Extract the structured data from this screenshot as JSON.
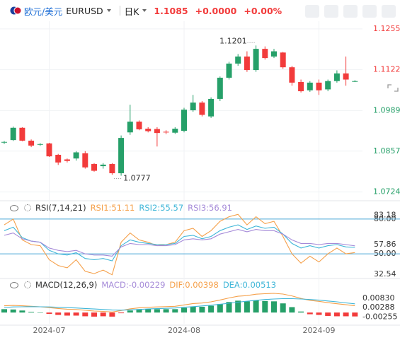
{
  "header": {
    "pair_name": "欧元/美元",
    "symbol": "EURUSD",
    "period": "日K",
    "price": "1.1085",
    "change": "+0.0000",
    "change_pct": "+0.00%"
  },
  "chart_data": [
    {
      "type": "candlestick",
      "categories": [
        null,
        null,
        null,
        null,
        null,
        "2024-07",
        null,
        null,
        null,
        null,
        null,
        null,
        null,
        null,
        null,
        null,
        null,
        null,
        null,
        null,
        "2024-08",
        null,
        null,
        null,
        null,
        null,
        null,
        null,
        null,
        null,
        null,
        null,
        null,
        null,
        null,
        "2024-09",
        null,
        null,
        null,
        null
      ],
      "open": [
        1.0885,
        1.0893,
        1.0933,
        1.0891,
        1.0878,
        1.0882,
        1.0845,
        1.083,
        1.0833,
        1.085,
        1.0815,
        1.0808,
        1.0815,
        1.0785,
        1.0918,
        1.0953,
        1.093,
        1.0929,
        1.092,
        1.0917,
        1.0923,
        1.099,
        1.1015,
        1.097,
        1.1027,
        1.1096,
        1.1142,
        1.1165,
        1.1121,
        1.119,
        1.1165,
        1.1178,
        1.113,
        1.1082,
        1.1055,
        1.108,
        1.1058,
        1.1085,
        1.111,
        1.1085
      ],
      "high": [
        1.089,
        1.0937,
        1.0935,
        1.0895,
        1.0883,
        1.0884,
        1.0848,
        1.0833,
        1.0857,
        1.0857,
        1.0818,
        1.0818,
        1.0818,
        1.0908,
        1.1008,
        1.0957,
        1.0935,
        1.0935,
        1.0925,
        1.0935,
        1.0998,
        1.104,
        1.102,
        1.1032,
        1.11,
        1.1148,
        1.1173,
        1.1182,
        1.1201,
        1.1198,
        1.119,
        1.118,
        1.1135,
        1.109,
        1.1085,
        1.109,
        1.109,
        1.112,
        1.1165,
        1.1088
      ],
      "low": [
        1.088,
        1.089,
        1.0889,
        1.087,
        1.0874,
        1.0838,
        1.0812,
        1.082,
        1.0826,
        1.08,
        1.079,
        1.08,
        1.078,
        1.0777,
        1.091,
        1.0925,
        1.0918,
        1.0872,
        1.0912,
        1.0913,
        1.0918,
        1.0985,
        1.097,
        1.0965,
        1.102,
        1.109,
        1.1135,
        1.1115,
        1.1115,
        1.1155,
        1.116,
        1.1125,
        1.107,
        1.1048,
        1.105,
        1.104,
        1.1052,
        1.108,
        1.107,
        1.1082
      ],
      "close": [
        1.0887,
        1.0933,
        1.0891,
        1.0875,
        1.088,
        1.084,
        1.082,
        1.0825,
        1.0853,
        1.0804,
        1.0793,
        1.0813,
        1.0785,
        1.09,
        1.0953,
        1.0928,
        1.0922,
        1.0916,
        1.0918,
        1.093,
        1.0992,
        1.1015,
        1.0975,
        1.1027,
        1.1096,
        1.1142,
        1.1165,
        1.1121,
        1.119,
        1.116,
        1.1182,
        1.113,
        1.108,
        1.1052,
        1.108,
        1.1055,
        1.1085,
        1.111,
        1.109,
        1.1085
      ],
      "colors": {
        "up": "#26a069",
        "down": "#f23b3b"
      },
      "ylim": [
        1.07,
        1.128
      ],
      "yticks": [
        1.1255,
        1.1122,
        1.0989,
        1.0857,
        1.0724
      ],
      "grid": true
    },
    {
      "type": "line",
      "title": "RSI(7,14,21)",
      "series": [
        {
          "name": "RSI1:51.11",
          "color": "#f5a04a",
          "values": [
            75,
            80,
            62,
            58,
            57,
            45,
            40,
            38,
            45,
            35,
            33,
            36,
            32,
            60,
            68,
            62,
            60,
            57,
            58,
            60,
            70,
            72,
            65,
            70,
            78,
            82,
            84,
            75,
            82,
            76,
            78,
            65,
            50,
            42,
            48,
            43,
            50,
            55,
            50,
            51.11
          ]
        },
        {
          "name": "RSI2:55.57",
          "color": "#3fb6d8",
          "values": [
            70,
            73,
            64,
            61,
            60,
            53,
            50,
            49,
            51,
            46,
            45,
            46,
            44,
            57,
            62,
            60,
            59,
            58,
            58,
            59,
            65,
            66,
            63,
            65,
            70,
            73,
            75,
            71,
            74,
            72,
            73,
            67,
            59,
            55,
            57,
            55,
            57,
            58,
            56,
            55.57
          ]
        },
        {
          "name": "RSI3:56.91",
          "color": "#a58ad8",
          "values": [
            66,
            68,
            63,
            61,
            60,
            55,
            53,
            52,
            53,
            50,
            49,
            49,
            48,
            56,
            59,
            58,
            58,
            57,
            57,
            58,
            62,
            63,
            62,
            63,
            67,
            69,
            71,
            69,
            71,
            70,
            70,
            67,
            62,
            59,
            59,
            58,
            59,
            59,
            58,
            56.91
          ]
        }
      ],
      "ylim": [
        30,
        86
      ],
      "yticks": [
        {
          "value": 80,
          "label": "80.00"
        },
        83.18,
        57.86,
        {
          "value": 50,
          "label": "50.00"
        },
        32.54
      ],
      "hlines": [
        80,
        50
      ],
      "hline_color": "#4aa8d8",
      "grid": true
    },
    {
      "type": "macd",
      "title": "MACD(12,26,9)",
      "series": [
        {
          "name": "MACD:-0.00229",
          "color": "#a58ad8",
          "kind": "bar",
          "values": [
            0.002,
            0.0018,
            0.0012,
            0.0004,
            0,
            -0.0008,
            -0.0014,
            -0.0018,
            -0.0018,
            -0.0022,
            -0.0024,
            -0.0022,
            -0.0024,
            -0.0004,
            0.0012,
            0.002,
            0.002,
            0.002,
            0.002,
            0.002,
            0.0028,
            0.0036,
            0.0034,
            0.004,
            0.005,
            0.0062,
            0.007,
            0.0066,
            0.0072,
            0.0068,
            0.0066,
            0.0054,
            0.0032,
            0.0006,
            -0.001,
            -0.0014,
            -0.002,
            -0.0022,
            -0.0022,
            -0.00229
          ]
        },
        {
          "name": "DIF:0.00398",
          "color": "#f5a04a",
          "kind": "line",
          "values": [
            0.004,
            0.0042,
            0.004,
            0.0037,
            0.0034,
            0.0029,
            0.0024,
            0.002,
            0.0018,
            0.0013,
            0.0009,
            0.0007,
            0.0003,
            0.0012,
            0.0022,
            0.0028,
            0.0031,
            0.0033,
            0.0035,
            0.0037,
            0.0045,
            0.0053,
            0.0056,
            0.0063,
            0.0074,
            0.0086,
            0.0096,
            0.01,
            0.0108,
            0.0111,
            0.0113,
            0.0109,
            0.0098,
            0.0083,
            0.0072,
            0.0066,
            0.0058,
            0.0052,
            0.0046,
            0.00398
          ]
        },
        {
          "name": "DEA:0.00513",
          "color": "#3fb6d8",
          "kind": "line",
          "values": [
            0.003,
            0.0033,
            0.0034,
            0.0035,
            0.0034,
            0.0033,
            0.0031,
            0.0029,
            0.0027,
            0.0024,
            0.0021,
            0.0018,
            0.0015,
            0.0014,
            0.0016,
            0.0018,
            0.0021,
            0.0023,
            0.0025,
            0.0027,
            0.0031,
            0.0035,
            0.0039,
            0.0043,
            0.0049,
            0.0055,
            0.0061,
            0.0067,
            0.0072,
            0.0077,
            0.008,
            0.0082,
            0.0082,
            0.008,
            0.0077,
            0.0073,
            0.0068,
            0.0063,
            0.0057,
            0.00513
          ]
        }
      ],
      "colors": {
        "up": "#26a069",
        "down": "#f23b3b"
      },
      "ylim": [
        -0.0066,
        0.0134
      ],
      "yticks": [
        {
          "value": 0.0083,
          "label": "0.00830"
        },
        0.00288,
        -0.00255
      ],
      "grid": false
    }
  ]
}
